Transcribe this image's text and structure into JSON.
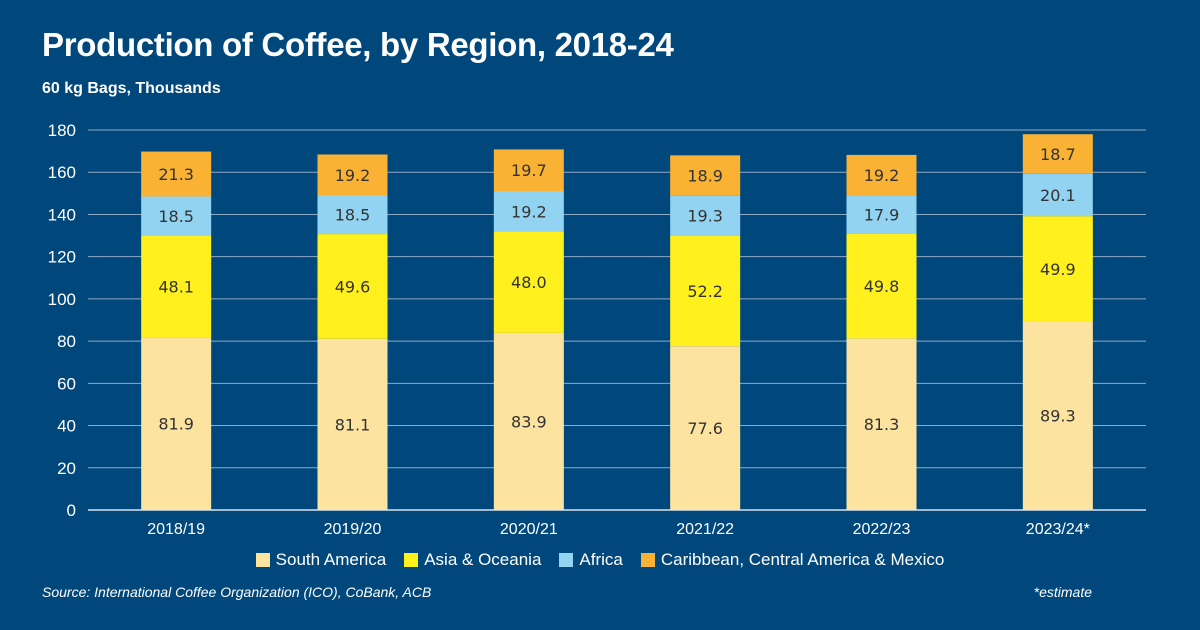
{
  "title": "Production of Coffee, by Region, 2018-24",
  "subtitle": "60 kg Bags, Thousands",
  "source": "Source: International Coffee Organization (ICO), CoBank, ACB",
  "note": "*estimate",
  "colors": {
    "background": "#00487c",
    "south_america": "#fde3a0",
    "asia_oceania": "#fff01e",
    "africa": "#93d3f2",
    "caribbean": "#f9b233"
  },
  "chart_data": {
    "type": "bar",
    "stacked": true,
    "categories": [
      "2018/19",
      "2019/20",
      "2020/21",
      "2021/22",
      "2022/23",
      "2023/24*"
    ],
    "series": [
      {
        "name": "South America",
        "color": "#fde3a0",
        "values": [
          81.9,
          81.1,
          83.9,
          77.6,
          81.3,
          89.3
        ]
      },
      {
        "name": "Asia & Oceania",
        "color": "#fff01e",
        "values": [
          48.1,
          49.6,
          48.0,
          52.2,
          49.8,
          49.9
        ]
      },
      {
        "name": "Africa",
        "color": "#93d3f2",
        "values": [
          18.5,
          18.5,
          19.2,
          19.3,
          17.9,
          20.1
        ]
      },
      {
        "name": "Caribbean, Central America & Mexico",
        "color": "#f9b233",
        "values": [
          21.3,
          19.2,
          19.7,
          18.9,
          19.2,
          18.7
        ]
      }
    ],
    "ylim": [
      0,
      180
    ],
    "yticks": [
      0,
      20,
      40,
      60,
      80,
      100,
      120,
      140,
      160,
      180
    ],
    "grid": true,
    "legend_position": "bottom"
  }
}
